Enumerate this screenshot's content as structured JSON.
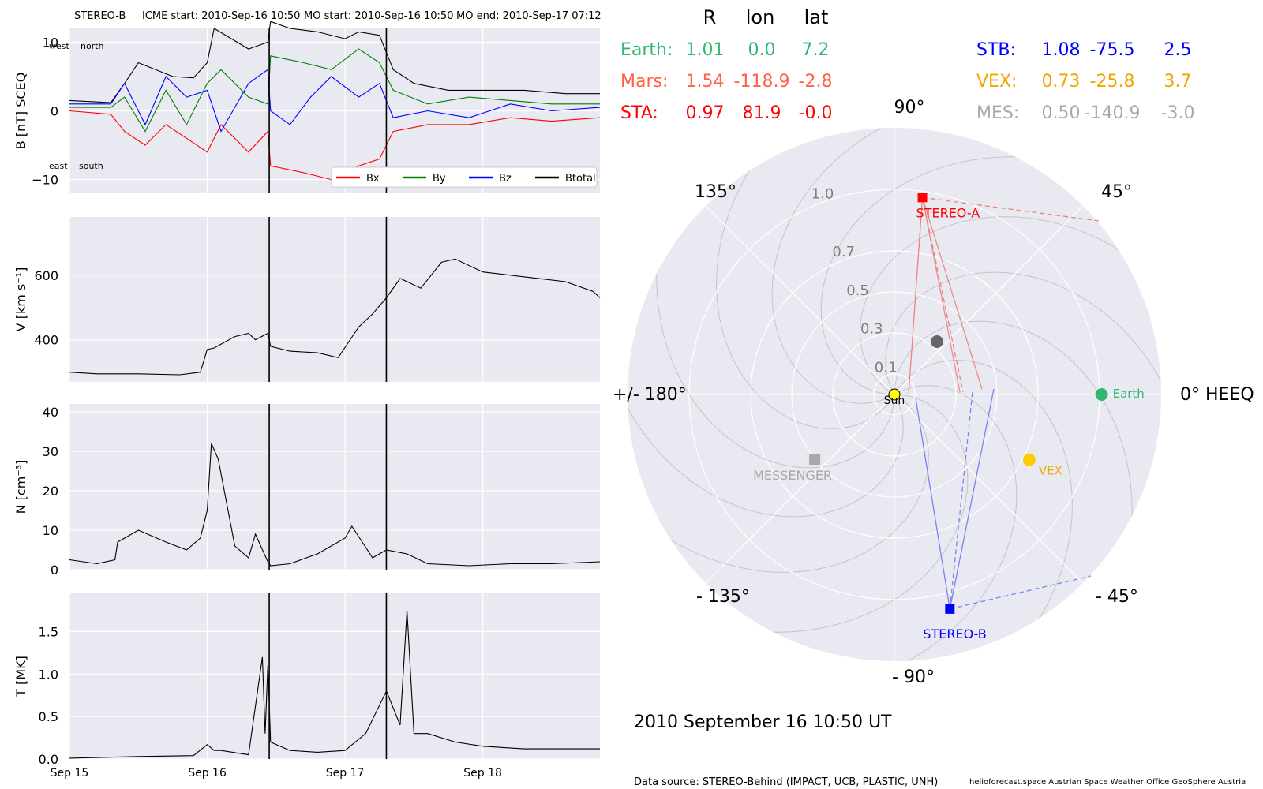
{
  "header": {
    "spacecraft": "STEREO-B",
    "icme_start": "ICME start: 2010-Sep-16 10:50",
    "mo_start": "MO start: 2010-Sep-16 10:50",
    "mo_end": "MO end: 2010-Sep-17 07:12"
  },
  "colors": {
    "bx": "#ff0000",
    "by": "#008000",
    "bz": "#0000ff",
    "btotal": "#000000",
    "earth": "#2eb872",
    "mars": "#ff6347",
    "sta": "#ff0000",
    "stb": "#0000ff",
    "vex": "#f0a500",
    "mes": "#a9a9a9",
    "sun": "#ffff00",
    "panel_bg": "#e9e9f1"
  },
  "chart_data": [
    {
      "type": "line",
      "id": "mag",
      "ylabel": "B [nT] SCEQ",
      "ylim": [
        -12,
        12
      ],
      "yticks": [
        -10,
        0,
        10
      ],
      "ytick_labels": [
        "−10",
        "0",
        "10"
      ],
      "x_range": [
        0,
        3.85
      ],
      "xtick_positions": [
        0,
        1,
        2,
        3
      ],
      "xtick_labels": [
        "Sep 15",
        "Sep 16",
        "Sep 17",
        "Sep 18"
      ],
      "event_lines": [
        1.45,
        2.3
      ],
      "corner_labels": {
        "top_left": "west",
        "top_right": "north",
        "bottom_left": "east",
        "bottom_right": "south"
      },
      "legend": [
        "Bx",
        "By",
        "Bz",
        "Btotal"
      ],
      "series": [
        {
          "name": "Btotal",
          "x": [
            0,
            0.3,
            0.4,
            0.5,
            0.75,
            0.9,
            1.0,
            1.05,
            1.3,
            1.44,
            1.46,
            1.6,
            1.8,
            2.0,
            2.1,
            2.25,
            2.35,
            2.5,
            2.75,
            3.0,
            3.3,
            3.6,
            3.85
          ],
          "y": [
            1.5,
            1.2,
            4.0,
            7.0,
            5.0,
            4.8,
            7.0,
            12.0,
            9.0,
            10.0,
            13.0,
            12.0,
            11.5,
            10.5,
            11.5,
            11.0,
            6.0,
            4.0,
            3.0,
            3.0,
            3.0,
            2.5,
            2.5
          ]
        },
        {
          "name": "Bx",
          "x": [
            0,
            0.3,
            0.4,
            0.55,
            0.7,
            0.85,
            1.0,
            1.1,
            1.3,
            1.44,
            1.46,
            1.7,
            1.9,
            2.1,
            2.25,
            2.35,
            2.6,
            2.9,
            3.2,
            3.5,
            3.85
          ],
          "y": [
            0,
            -0.5,
            -3,
            -5,
            -2,
            -4,
            -6,
            -2,
            -6,
            -3,
            -8,
            -9,
            -10,
            -8,
            -7,
            -3,
            -2,
            -2,
            -1,
            -1.5,
            -1
          ]
        },
        {
          "name": "By",
          "x": [
            0,
            0.3,
            0.4,
            0.55,
            0.7,
            0.85,
            1.0,
            1.1,
            1.3,
            1.44,
            1.46,
            1.7,
            1.9,
            2.1,
            2.25,
            2.35,
            2.6,
            2.9,
            3.2,
            3.5,
            3.85
          ],
          "y": [
            0.5,
            0.5,
            2,
            -3,
            3,
            -2,
            4,
            6,
            2,
            1,
            8,
            7,
            6,
            9,
            7,
            3,
            1,
            2,
            1.5,
            1,
            1
          ]
        },
        {
          "name": "Bz",
          "x": [
            0,
            0.3,
            0.4,
            0.55,
            0.7,
            0.85,
            1.0,
            1.1,
            1.3,
            1.44,
            1.46,
            1.6,
            1.75,
            1.9,
            2.1,
            2.25,
            2.35,
            2.6,
            2.9,
            3.2,
            3.5,
            3.85
          ],
          "y": [
            1,
            1,
            4,
            -2,
            5,
            2,
            3,
            -3,
            4,
            6,
            0,
            -2,
            2,
            5,
            2,
            4,
            -1,
            0,
            -1,
            1,
            0,
            0.5
          ]
        }
      ]
    },
    {
      "type": "line",
      "id": "speed",
      "ylabel": "V [km s⁻¹]",
      "ylim": [
        270,
        780
      ],
      "yticks": [
        400,
        600
      ],
      "ytick_labels": [
        "400",
        "600"
      ],
      "x_range": [
        0,
        3.85
      ],
      "event_lines": [
        1.45,
        2.3
      ],
      "series": [
        {
          "name": "V",
          "x": [
            0,
            0.2,
            0.5,
            0.8,
            0.95,
            1.0,
            1.05,
            1.2,
            1.3,
            1.35,
            1.44,
            1.46,
            1.6,
            1.8,
            1.95,
            2.1,
            2.2,
            2.3,
            2.4,
            2.55,
            2.7,
            2.8,
            3.0,
            3.2,
            3.4,
            3.6,
            3.8,
            3.85
          ],
          "y": [
            300,
            295,
            295,
            292,
            300,
            370,
            375,
            410,
            420,
            400,
            420,
            380,
            365,
            360,
            345,
            440,
            480,
            530,
            590,
            560,
            640,
            650,
            610,
            600,
            590,
            580,
            550,
            530
          ]
        }
      ]
    },
    {
      "type": "line",
      "id": "density",
      "ylabel": "N [cm⁻³]",
      "ylim": [
        0,
        42
      ],
      "yticks": [
        0,
        10,
        20,
        30,
        40
      ],
      "ytick_labels": [
        "0",
        "10",
        "20",
        "30",
        "40"
      ],
      "x_range": [
        0,
        3.85
      ],
      "event_lines": [
        1.45,
        2.3
      ],
      "series": [
        {
          "name": "N",
          "x": [
            0,
            0.2,
            0.33,
            0.35,
            0.5,
            0.7,
            0.85,
            0.95,
            1.0,
            1.03,
            1.08,
            1.2,
            1.3,
            1.35,
            1.44,
            1.46,
            1.6,
            1.8,
            2.0,
            2.05,
            2.2,
            2.3,
            2.45,
            2.6,
            2.9,
            3.2,
            3.5,
            3.85
          ],
          "y": [
            2.5,
            1.5,
            2.5,
            7,
            10,
            7,
            5,
            8,
            15,
            32,
            28,
            6,
            3,
            9,
            2,
            1,
            1.5,
            4,
            8,
            11,
            3,
            5,
            4,
            1.5,
            1,
            1.5,
            1.5,
            2
          ]
        }
      ]
    },
    {
      "type": "line",
      "id": "temperature",
      "ylabel": "T [MK]",
      "ylim": [
        0,
        1.95
      ],
      "yticks": [
        0,
        0.5,
        1.0,
        1.5
      ],
      "ytick_labels": [
        "0.0",
        "0.5",
        "1.0",
        "1.5"
      ],
      "x_range": [
        0,
        3.85
      ],
      "event_lines": [
        1.45,
        2.3
      ],
      "series": [
        {
          "name": "T",
          "x": [
            0,
            0.5,
            0.9,
            1.0,
            1.05,
            1.1,
            1.3,
            1.4,
            1.42,
            1.44,
            1.46,
            1.6,
            1.8,
            2.0,
            2.15,
            2.3,
            2.4,
            2.45,
            2.5,
            2.6,
            2.8,
            3.0,
            3.3,
            3.6,
            3.85
          ],
          "y": [
            0.01,
            0.03,
            0.04,
            0.17,
            0.1,
            0.1,
            0.05,
            1.2,
            0.3,
            1.1,
            0.2,
            0.1,
            0.08,
            0.1,
            0.3,
            0.8,
            0.4,
            1.75,
            0.3,
            0.3,
            0.2,
            0.15,
            0.12,
            0.12,
            0.12
          ]
        }
      ]
    },
    {
      "type": "scatter",
      "id": "positions",
      "projection": "polar",
      "title": "2010 September 16  10:50 UT",
      "r_ticks": [
        0.1,
        0.3,
        0.5,
        0.7,
        1.0
      ],
      "r_tick_labels": [
        "0.1",
        "0.3",
        "0.5",
        "0.7",
        "1.0"
      ],
      "angle_labels": {
        "0": "0° HEEQ",
        "45": "45°",
        "90": "90°",
        "135": "135°",
        "180": "+/- 180°",
        "-135": "- 135°",
        "-90": "- 90°",
        "-45": "- 45°"
      },
      "bodies": [
        {
          "name": "Sun",
          "r": 0.0,
          "lon": 0.0,
          "label": "Sun"
        },
        {
          "name": "Earth",
          "r": 1.01,
          "lon": 0.0,
          "label": "Earth"
        },
        {
          "name": "STEREO-A",
          "r": 0.97,
          "lon": 81.9,
          "label": "STEREO-A"
        },
        {
          "name": "STEREO-B",
          "r": 1.08,
          "lon": -75.5,
          "label": "STEREO-B"
        },
        {
          "name": "VEX",
          "r": 0.73,
          "lon": -25.8,
          "label": "VEX"
        },
        {
          "name": "MESSENGER",
          "r": 0.5,
          "lon": -140.9,
          "label": "MESSENGER"
        },
        {
          "name": "Mars",
          "r": 1.54,
          "lon": -118.9,
          "label": ""
        }
      ]
    }
  ],
  "table": {
    "headers": [
      "R",
      "lon",
      "lat"
    ],
    "rows": [
      {
        "name": "Earth:",
        "R": "1.01",
        "lon": "0.0",
        "lat": "7.2"
      },
      {
        "name": "Mars:",
        "R": "1.54",
        "lon": "-118.9",
        "lat": "-2.8"
      },
      {
        "name": "STA:",
        "R": "0.97",
        "lon": "81.9",
        "lat": "-0.0"
      },
      {
        "name": "STB:",
        "R": "1.08",
        "lon": "-75.5",
        "lat": "2.5"
      },
      {
        "name": "VEX:",
        "R": "0.73",
        "lon": "-25.8",
        "lat": "3.7"
      },
      {
        "name": "MES:",
        "R": "0.50",
        "lon": "-140.9",
        "lat": "-3.0"
      }
    ]
  },
  "footer": {
    "data_source": "Data source: STEREO-Behind (IMPACT, UCB, PLASTIC, UNH)",
    "credits": "helioforecast.space   Austrian Space Weather Office   GeoSphere Austria"
  }
}
